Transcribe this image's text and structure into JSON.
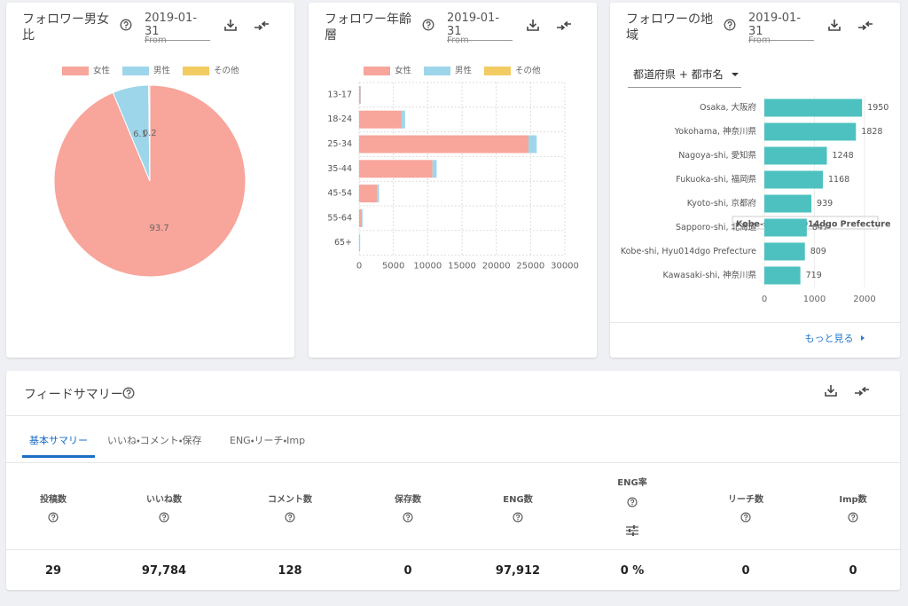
{
  "gender": {
    "title": "フォロワー男女比",
    "date": "2019-01-31",
    "date_caption": "From",
    "chart": {
      "type": "pie",
      "categories": [
        "女性",
        "男性",
        "その他"
      ],
      "values": [
        93.7,
        6.1,
        0.2
      ],
      "colors": [
        "#f8a59b",
        "#9dd6ea",
        "#f3cb63"
      ]
    }
  },
  "age": {
    "title": "フォロワー年齢層",
    "date": "2019-01-31",
    "date_caption": "From",
    "chart": {
      "type": "stacked-bar-horizontal",
      "categories": [
        "13-17",
        "18-24",
        "25-34",
        "35-44",
        "45-54",
        "55-64",
        "65+"
      ],
      "series": [
        {
          "name": "女性",
          "color": "#f8a59b",
          "values": [
            200,
            6200,
            24700,
            10700,
            2600,
            400,
            100
          ]
        },
        {
          "name": "男性",
          "color": "#9dd6ea",
          "values": [
            50,
            500,
            1200,
            600,
            300,
            100,
            50
          ]
        },
        {
          "name": "その他",
          "color": "#f3cb63",
          "values": [
            0,
            0,
            0,
            0,
            0,
            0,
            0
          ]
        }
      ],
      "xlim": [
        0,
        30000
      ],
      "xticks": [
        0,
        5000,
        10000,
        15000,
        20000,
        25000,
        30000
      ],
      "grid": true
    }
  },
  "region": {
    "title": "フォロワーの地域",
    "date": "2019-01-31",
    "date_caption": "From",
    "dropdown": "都道府県 + 都市名",
    "more_link": "もっと見る",
    "chart": {
      "type": "bar-horizontal",
      "categories": [
        "Osaka, 大阪府",
        "Yokohama, 神奈川県",
        "Nagoya-shi, 愛知県",
        "Fukuoka-shi, 福岡県",
        "Kyoto-shi, 京都府",
        "Sapporo-shi, 北海道",
        "Kobe-shi,  Hyu014dgo Prefecture",
        "Kawasaki-shi, 神奈川県"
      ],
      "values": [
        1950,
        1828,
        1248,
        1168,
        939,
        847,
        809,
        719
      ],
      "color": "#4dc1bf",
      "xlim": [
        0,
        2000
      ],
      "xticks": [
        0,
        1000,
        2000
      ],
      "grid": true,
      "tooltip": "Kobe-shi,  Hyu014dgo Prefecture"
    }
  },
  "summary": {
    "title": "フィードサマリー",
    "tabs": [
      "基本サマリー",
      "いいね・コメント・保存",
      "ENG・リーチ・Imp"
    ],
    "active_tab": 0,
    "columns": [
      {
        "header": "投稿数",
        "value": "29"
      },
      {
        "header": "いいね数",
        "value": "97,784"
      },
      {
        "header": "コメント数",
        "value": "128"
      },
      {
        "header": "保存数",
        "value": "0"
      },
      {
        "header": "ENG数",
        "value": "97,912"
      },
      {
        "header": "ENG率",
        "value": "0 %"
      },
      {
        "header": "リーチ数",
        "value": "0"
      },
      {
        "header": "Imp数",
        "value": "0"
      }
    ]
  }
}
